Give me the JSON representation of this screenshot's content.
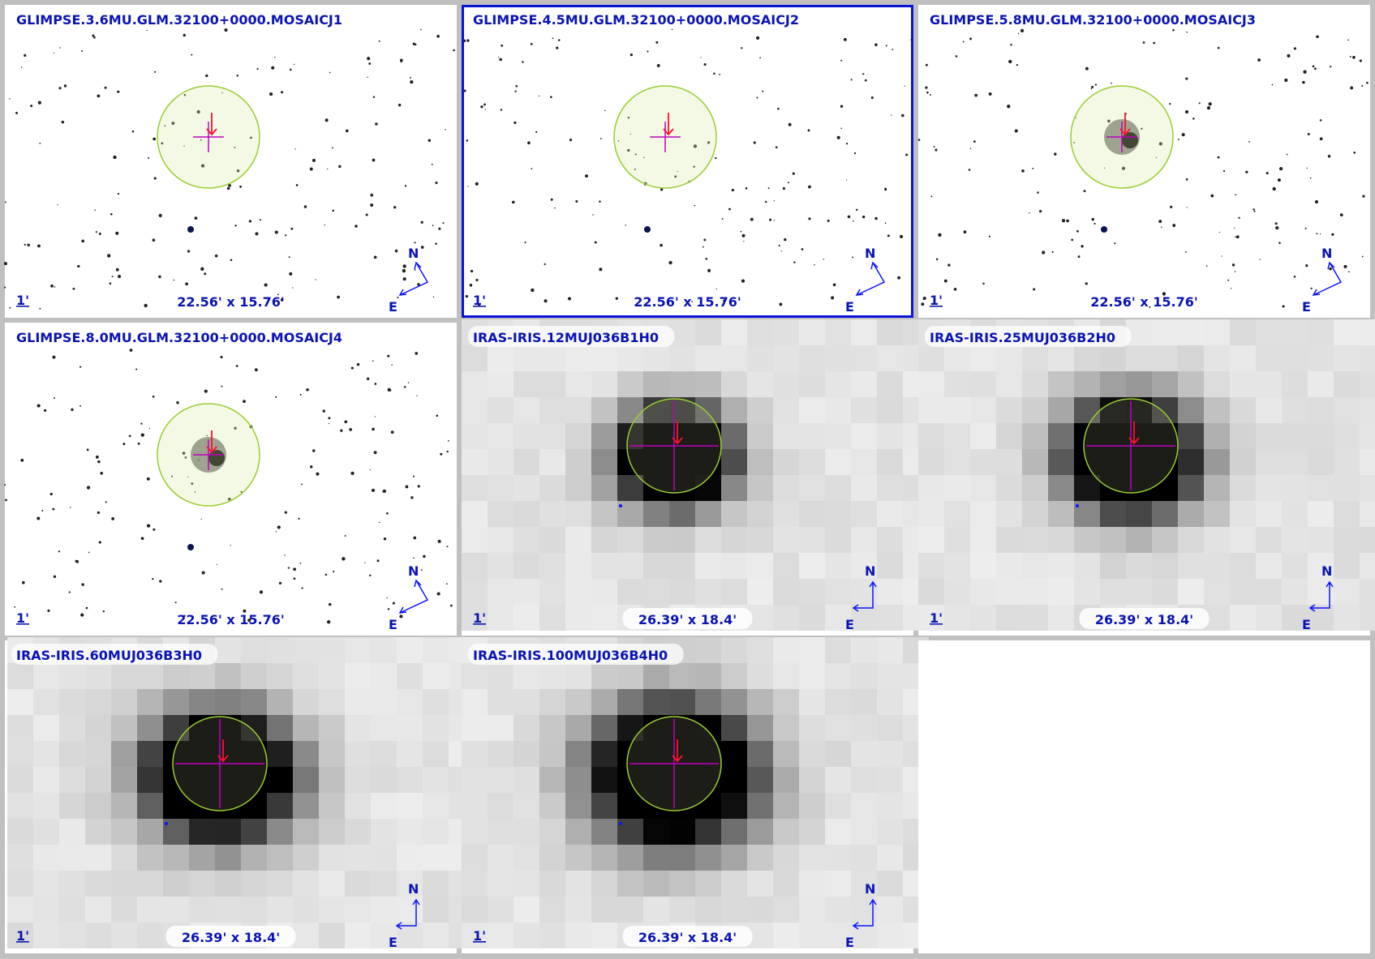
{
  "compass": {
    "north": "N",
    "east": "E"
  },
  "panels": [
    {
      "title": "GLIMPSE.3.6MU.GLM.32100+0000.MOSAICJ1",
      "scale_label": "1'",
      "size": "22.56' x 15.76'"
    },
    {
      "title": "GLIMPSE.4.5MU.GLM.32100+0000.MOSAICJ2",
      "scale_label": "1'",
      "size": "22.56' x 15.76'"
    },
    {
      "title": "GLIMPSE.5.8MU.GLM.32100+0000.MOSAICJ3",
      "scale_label": "1'",
      "size": "22.56' x 15.76'"
    },
    {
      "title": "GLIMPSE.8.0MU.GLM.32100+0000.MOSAICJ4",
      "scale_label": "1'",
      "size": "22.56' x 15.76'"
    },
    {
      "title": "IRAS-IRIS.12MUJ036B1H0",
      "scale_label": "1'",
      "size": "26.39' x 18.4'"
    },
    {
      "title": "IRAS-IRIS.25MUJ036B2H0",
      "scale_label": "1'",
      "size": "26.39' x 18.4'"
    },
    {
      "title": "IRAS-IRIS.60MUJ036B3H0",
      "scale_label": "1'",
      "size": "26.39' x 18.4'"
    },
    {
      "title": "IRAS-IRIS.100MUJ036B4H0",
      "scale_label": "1'",
      "size": "26.39' x 18.4'"
    }
  ]
}
